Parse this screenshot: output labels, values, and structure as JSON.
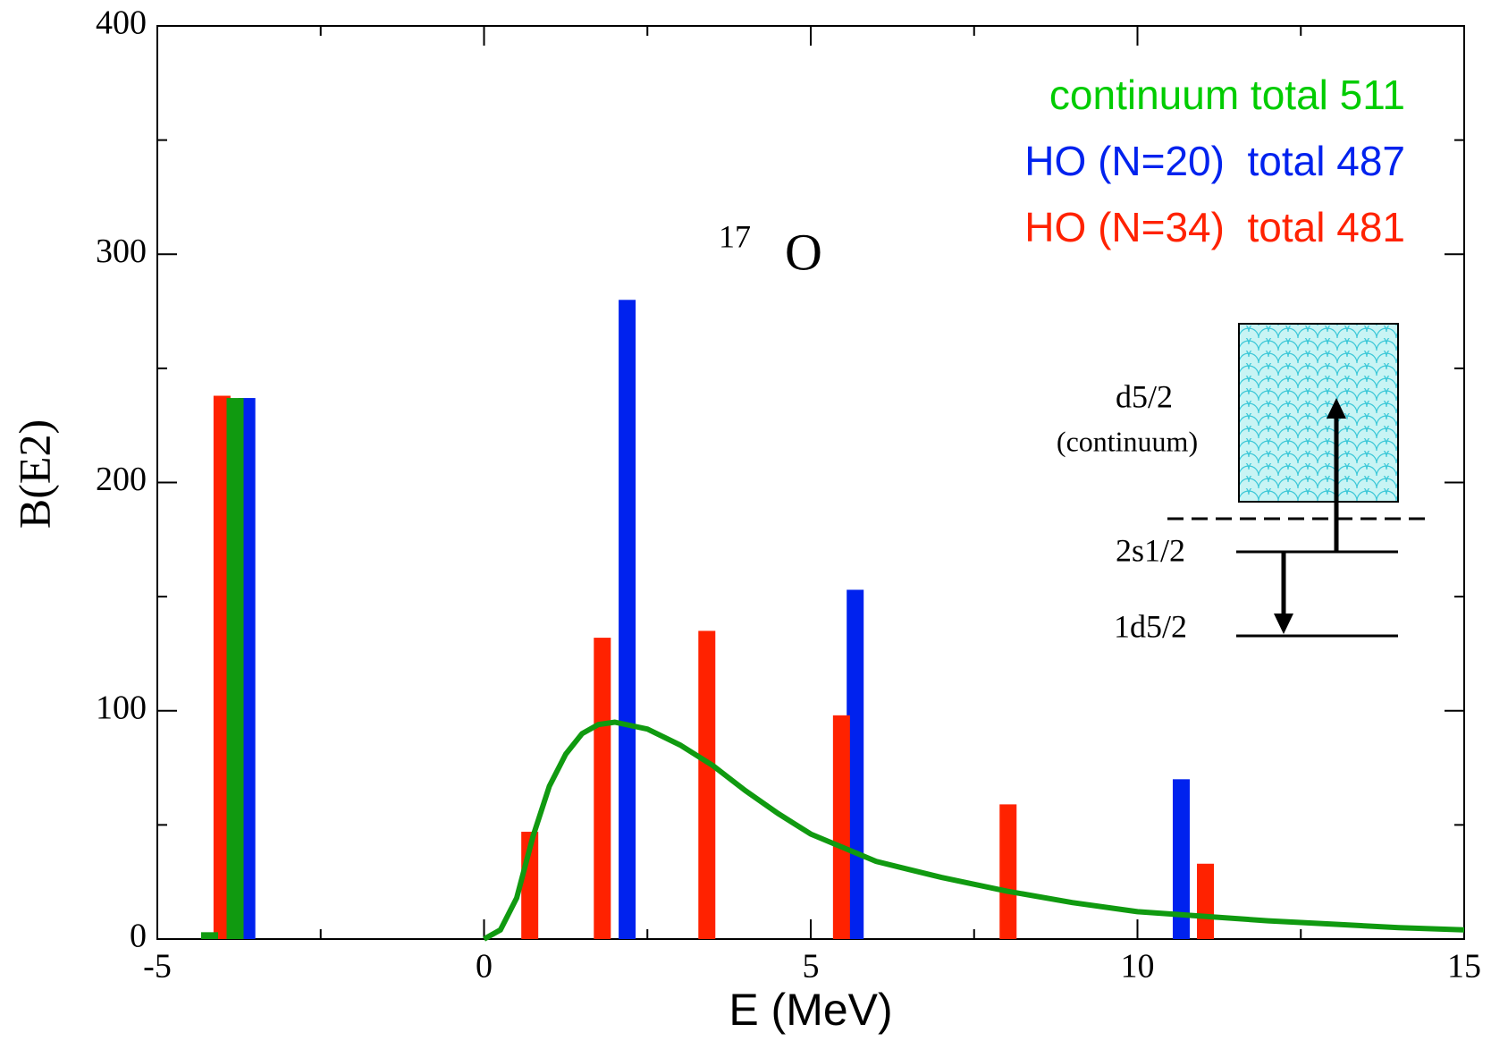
{
  "chart_data": {
    "type": "bar",
    "xlabel": "E (MeV)",
    "ylabel": "B(E2)",
    "xlim": [
      -5,
      15
    ],
    "xticks": [
      -5,
      0,
      5,
      10,
      15
    ],
    "xminorticks": [
      -2.5,
      2.5,
      7.5,
      12.5
    ],
    "ylim": [
      0,
      400
    ],
    "yticks": [
      0,
      100,
      200,
      300,
      400
    ],
    "yminorticks": [
      50,
      150,
      250,
      350
    ],
    "grid": false,
    "legend_position": "upper right",
    "series": [
      {
        "name": "continuum total 511",
        "color": "#00cc00",
        "line_color": "#109a10",
        "type": "line",
        "x": [
          0,
          0.25,
          0.5,
          0.75,
          1.0,
          1.25,
          1.5,
          1.75,
          2,
          2.5,
          3,
          3.5,
          4,
          4.5,
          5,
          5.5,
          6,
          7,
          8,
          9,
          10,
          11,
          12,
          13,
          14,
          15
        ],
        "values": [
          0,
          4,
          18,
          45,
          67,
          81,
          90,
          94,
          95,
          92,
          85,
          76,
          65,
          55,
          46,
          40,
          34,
          27,
          21,
          16,
          12,
          10,
          8,
          6.5,
          5,
          4
        ]
      },
      {
        "name": "HO (N=20)  total 487",
        "color": "#0022ee",
        "type": "bar",
        "x": [
          -3.63,
          2.19,
          5.68,
          10.67
        ],
        "values": [
          237,
          280,
          153,
          70
        ]
      },
      {
        "name": "HO (N=34)  total 481",
        "color": "#ff2200",
        "type": "bar",
        "x": [
          -4.01,
          0.7,
          1.81,
          3.41,
          5.47,
          8.02,
          11.04
        ],
        "values": [
          238,
          47,
          132,
          135,
          98,
          59,
          33
        ]
      },
      {
        "color": "#109a10",
        "type": "bar",
        "x": [
          -4.2,
          -3.81
        ],
        "values": [
          3,
          237
        ]
      }
    ],
    "annotations": {
      "nucleus_mass": "17",
      "nucleus_symbol": "O",
      "level_continuum": "d5/2",
      "level_continuum_note": "(continuum)",
      "level_2s": "2s1/2",
      "level_1d": "1d5/2"
    }
  }
}
